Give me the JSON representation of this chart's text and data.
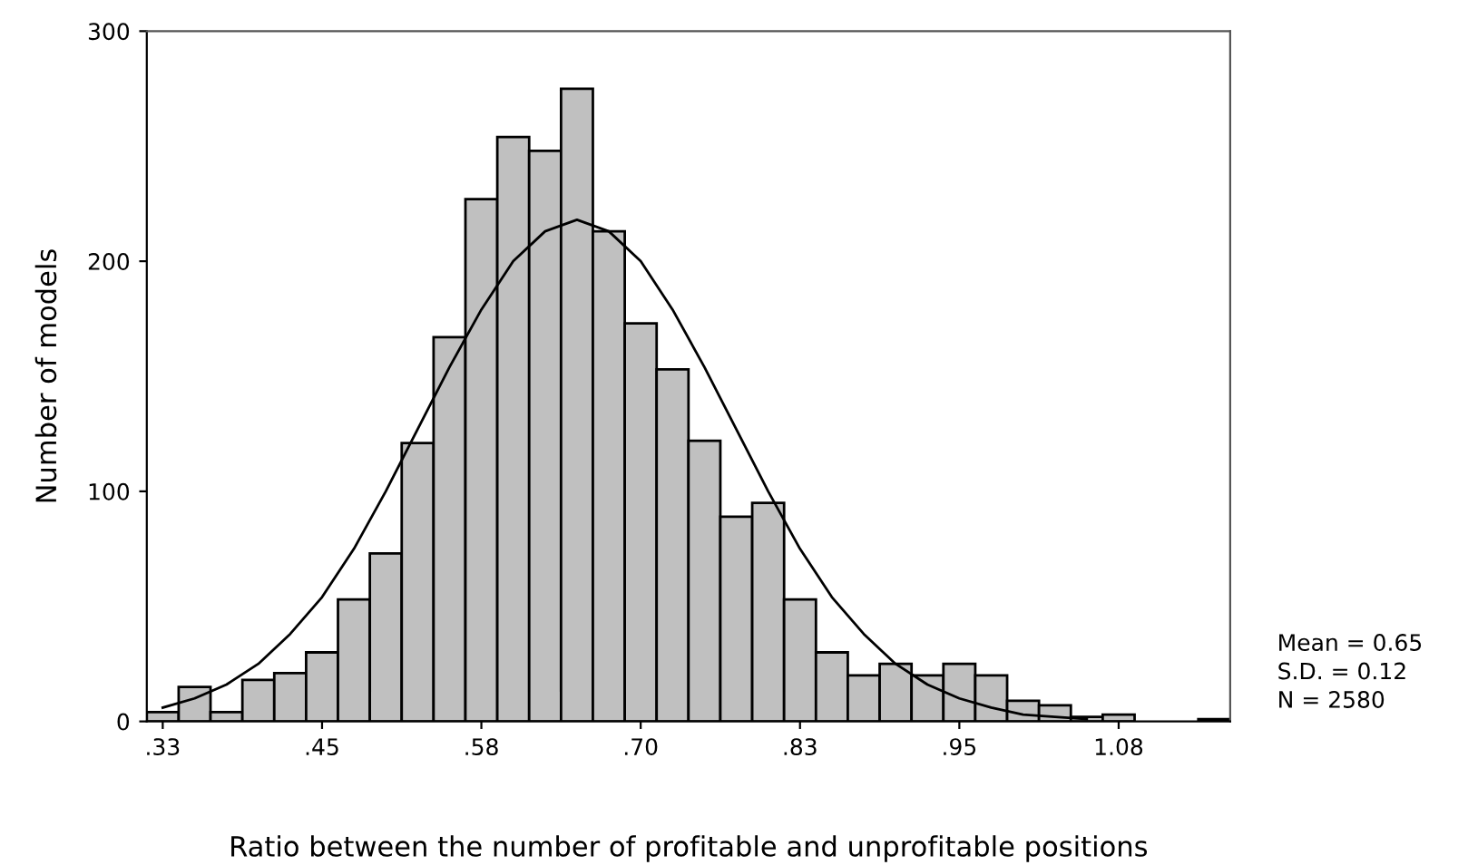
{
  "chart_data": {
    "type": "histogram",
    "xlabel": "Ratio between the number of profitable and unprofitable positions",
    "ylabel": "Number of models",
    "bins": [
      0.3125,
      0.3375,
      0.3625,
      0.3875,
      0.4125,
      0.4375,
      0.4625,
      0.4875,
      0.5125,
      0.5375,
      0.5625,
      0.5875,
      0.6125,
      0.6375,
      0.6625,
      0.6875,
      0.7125,
      0.7375,
      0.7625,
      0.7875,
      0.8125,
      0.8375,
      0.8625,
      0.8875,
      0.9125,
      0.9375,
      0.9625,
      0.9875,
      1.0125,
      1.0375,
      1.0625,
      1.0875,
      1.1125,
      1.1375,
      1.1625
    ],
    "series": [
      {
        "color": "#c0c0c0",
        "values": [
          4,
          15,
          4,
          18,
          21,
          30,
          53,
          73,
          121,
          167,
          227,
          254,
          248,
          275,
          213,
          173,
          153,
          122,
          89,
          95,
          53,
          30,
          20,
          25,
          20,
          25,
          20,
          9,
          7,
          2,
          3,
          0,
          0,
          1
        ]
      },
      {
        "type": "line",
        "color": "#000000",
        "x": [
          0.325,
          0.35,
          0.375,
          0.4,
          0.425,
          0.45,
          0.475,
          0.5,
          0.525,
          0.55,
          0.575,
          0.6,
          0.625,
          0.65,
          0.675,
          0.7,
          0.725,
          0.75,
          0.775,
          0.8,
          0.825,
          0.85,
          0.875,
          0.9,
          0.925,
          0.95,
          0.975,
          1.0,
          1.025,
          1.05
        ],
        "values": [
          6,
          10,
          16,
          25,
          38,
          54,
          75,
          100,
          127,
          154,
          179,
          200,
          213,
          218,
          213,
          200,
          179,
          154,
          127,
          100,
          75,
          54,
          38,
          25,
          16,
          10,
          6,
          3,
          2,
          1
        ]
      }
    ],
    "xlim": [
      0.3125,
      1.1625
    ],
    "ylim": [
      0,
      300
    ],
    "xticks": [
      {
        "value": 0.325,
        "label": ".33"
      },
      {
        "value": 0.45,
        "label": ".45"
      },
      {
        "value": 0.575,
        "label": ".58"
      },
      {
        "value": 0.7,
        "label": ".70"
      },
      {
        "value": 0.825,
        "label": ".83"
      },
      {
        "value": 0.95,
        "label": ".95"
      },
      {
        "value": 1.075,
        "label": "1.08"
      }
    ],
    "yticks": [
      0,
      100,
      200,
      300
    ],
    "grid": false,
    "annotations": [
      "Mean = 0.65",
      "S.D. = 0.12",
      "N = 2580"
    ]
  }
}
